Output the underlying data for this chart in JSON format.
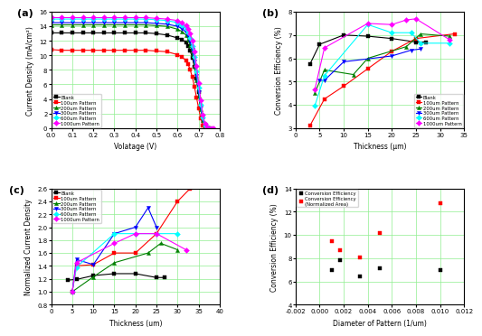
{
  "panel_a": {
    "title": "(a)",
    "xlabel": "Volatage (V)",
    "ylabel": "Current Density (mA/cm²)",
    "xlim": [
      0,
      0.8
    ],
    "ylim": [
      0,
      16
    ],
    "xticks": [
      0.0,
      0.1,
      0.2,
      0.3,
      0.4,
      0.5,
      0.6,
      0.7,
      0.8
    ],
    "yticks": [
      0,
      2,
      4,
      6,
      8,
      10,
      12,
      14,
      16
    ],
    "series": {
      "Blank": {
        "color": "black",
        "marker": "s",
        "x": [
          0.0,
          0.05,
          0.1,
          0.15,
          0.2,
          0.25,
          0.3,
          0.35,
          0.4,
          0.45,
          0.5,
          0.55,
          0.6,
          0.62,
          0.64,
          0.65,
          0.66,
          0.67,
          0.68,
          0.69,
          0.7,
          0.71,
          0.72,
          0.73,
          0.74,
          0.75
        ],
        "y": [
          13.1,
          13.1,
          13.1,
          13.1,
          13.1,
          13.1,
          13.1,
          13.1,
          13.1,
          13.1,
          13.0,
          12.8,
          12.4,
          12.2,
          11.8,
          11.3,
          10.6,
          9.7,
          8.4,
          6.8,
          5.0,
          3.1,
          1.5,
          0.5,
          0.1,
          0.0
        ]
      },
      "100um Pattern": {
        "color": "red",
        "marker": "s",
        "x": [
          0.0,
          0.05,
          0.1,
          0.15,
          0.2,
          0.25,
          0.3,
          0.35,
          0.4,
          0.45,
          0.5,
          0.55,
          0.6,
          0.62,
          0.64,
          0.65,
          0.66,
          0.67,
          0.68,
          0.69,
          0.7,
          0.71,
          0.72,
          0.73,
          0.74,
          0.75
        ],
        "y": [
          10.8,
          10.7,
          10.7,
          10.7,
          10.7,
          10.7,
          10.7,
          10.7,
          10.7,
          10.7,
          10.6,
          10.5,
          10.1,
          9.8,
          9.3,
          8.8,
          8.0,
          7.0,
          5.7,
          4.2,
          2.7,
          1.3,
          0.4,
          0.05,
          0.0,
          0.0
        ]
      },
      "200um Pattern": {
        "color": "green",
        "marker": "^",
        "x": [
          0.0,
          0.05,
          0.1,
          0.15,
          0.2,
          0.25,
          0.3,
          0.35,
          0.4,
          0.45,
          0.5,
          0.55,
          0.6,
          0.62,
          0.64,
          0.65,
          0.66,
          0.67,
          0.68,
          0.69,
          0.7,
          0.71,
          0.72,
          0.73,
          0.74,
          0.75
        ],
        "y": [
          14.2,
          14.2,
          14.2,
          14.2,
          14.2,
          14.2,
          14.2,
          14.2,
          14.2,
          14.2,
          14.1,
          14.0,
          13.6,
          13.3,
          12.8,
          12.2,
          11.4,
          10.2,
          8.6,
          6.6,
          4.5,
          2.6,
          1.1,
          0.3,
          0.02,
          0.0
        ]
      },
      "300um Pattern": {
        "color": "blue",
        "marker": "v",
        "x": [
          0.0,
          0.05,
          0.1,
          0.15,
          0.2,
          0.25,
          0.3,
          0.35,
          0.4,
          0.45,
          0.5,
          0.55,
          0.6,
          0.62,
          0.64,
          0.65,
          0.66,
          0.67,
          0.68,
          0.69,
          0.7,
          0.71,
          0.72,
          0.73,
          0.74,
          0.75
        ],
        "y": [
          14.5,
          14.5,
          14.5,
          14.5,
          14.5,
          14.5,
          14.5,
          14.5,
          14.5,
          14.5,
          14.4,
          14.3,
          14.0,
          13.7,
          13.2,
          12.7,
          11.9,
          10.8,
          9.2,
          7.2,
          5.0,
          2.8,
          1.2,
          0.3,
          0.03,
          0.0
        ]
      },
      "600um Pattern": {
        "color": "cyan",
        "marker": "D",
        "x": [
          0.0,
          0.05,
          0.1,
          0.15,
          0.2,
          0.25,
          0.3,
          0.35,
          0.4,
          0.45,
          0.5,
          0.55,
          0.6,
          0.62,
          0.64,
          0.65,
          0.66,
          0.67,
          0.68,
          0.69,
          0.7,
          0.71,
          0.72,
          0.73,
          0.74,
          0.75
        ],
        "y": [
          15.0,
          15.0,
          15.0,
          15.0,
          15.0,
          15.0,
          15.0,
          15.0,
          15.0,
          15.0,
          14.9,
          14.8,
          14.5,
          14.2,
          13.7,
          13.2,
          12.4,
          11.3,
          9.8,
          7.8,
          5.5,
          3.2,
          1.4,
          0.4,
          0.04,
          0.0
        ]
      },
      "1000um Pattern": {
        "color": "magenta",
        "marker": "D",
        "x": [
          0.0,
          0.05,
          0.1,
          0.15,
          0.2,
          0.25,
          0.3,
          0.35,
          0.4,
          0.45,
          0.5,
          0.55,
          0.6,
          0.62,
          0.64,
          0.65,
          0.66,
          0.67,
          0.68,
          0.69,
          0.7,
          0.71,
          0.72,
          0.73,
          0.74,
          0.75,
          0.76,
          0.77
        ],
        "y": [
          15.2,
          15.2,
          15.2,
          15.2,
          15.2,
          15.2,
          15.2,
          15.2,
          15.2,
          15.2,
          15.1,
          15.0,
          14.8,
          14.5,
          14.1,
          13.7,
          13.0,
          12.0,
          10.5,
          8.5,
          6.2,
          3.8,
          1.8,
          0.6,
          0.1,
          0.02,
          0.0,
          0.0
        ]
      }
    },
    "legend_loc": "lower left"
  },
  "panel_b": {
    "title": "(b)",
    "xlabel": "Thickness (μm)",
    "ylabel": "Conversion Efficiency (%)",
    "xlim": [
      0,
      35
    ],
    "ylim": [
      3,
      8
    ],
    "xticks": [
      0,
      5,
      10,
      15,
      20,
      25,
      30,
      35
    ],
    "yticks": [
      3,
      4,
      5,
      6,
      7,
      8
    ],
    "series": {
      "Blank": {
        "color": "black",
        "marker": "s",
        "x": [
          3,
          5,
          10,
          15,
          20,
          25,
          27
        ],
        "y": [
          5.75,
          6.6,
          7.0,
          6.95,
          6.85,
          6.7,
          6.7
        ]
      },
      "100um Pattern": {
        "color": "red",
        "marker": "s",
        "x": [
          3,
          6,
          10,
          15,
          20,
          25,
          33
        ],
        "y": [
          3.1,
          4.25,
          4.8,
          5.55,
          6.3,
          6.85,
          7.05
        ]
      },
      "200um Pattern": {
        "color": "green",
        "marker": "^",
        "x": [
          4,
          6,
          12,
          15,
          23,
          26,
          32
        ],
        "y": [
          4.5,
          5.5,
          5.3,
          6.0,
          6.5,
          7.05,
          6.95
        ]
      },
      "300um Pattern": {
        "color": "blue",
        "marker": "v",
        "x": [
          5,
          6,
          10,
          20,
          24,
          26
        ],
        "y": [
          5.05,
          5.05,
          5.85,
          6.1,
          6.35,
          6.4
        ]
      },
      "600um Pattern": {
        "color": "cyan",
        "marker": "D",
        "x": [
          4,
          6,
          15,
          20,
          24,
          26,
          32
        ],
        "y": [
          3.95,
          5.25,
          7.45,
          7.1,
          7.1,
          6.65,
          6.65
        ]
      },
      "1000um Pattern": {
        "color": "magenta",
        "marker": "D",
        "x": [
          4,
          6,
          15,
          20,
          23,
          25,
          32
        ],
        "y": [
          4.65,
          6.45,
          7.5,
          7.45,
          7.65,
          7.7,
          6.8
        ]
      }
    },
    "legend_loc": "lower right"
  },
  "panel_c": {
    "title": "(c)",
    "xlabel": "Thickness (um)",
    "ylabel": "Normalized Current Density",
    "xlim": [
      0,
      40
    ],
    "ylim": [
      0.8,
      2.6
    ],
    "xticks": [
      0,
      5,
      10,
      15,
      20,
      25,
      30,
      35,
      40
    ],
    "yticks": [
      0.8,
      1.0,
      1.2,
      1.4,
      1.6,
      1.8,
      2.0,
      2.2,
      2.4,
      2.6
    ],
    "series": {
      "Blank": {
        "color": "black",
        "marker": "s",
        "x": [
          4,
          6,
          10,
          15,
          20,
          25,
          27
        ],
        "y": [
          1.18,
          1.19,
          1.25,
          1.28,
          1.28,
          1.22,
          1.22
        ]
      },
      "100um Pattern": {
        "color": "red",
        "marker": "s",
        "x": [
          5,
          6,
          10,
          15,
          20,
          25,
          30,
          33
        ],
        "y": [
          1.0,
          1.4,
          1.42,
          1.6,
          1.6,
          1.9,
          2.4,
          2.6
        ]
      },
      "200um Pattern": {
        "color": "green",
        "marker": "^",
        "x": [
          5,
          10,
          15,
          23,
          26,
          30
        ],
        "y": [
          1.0,
          1.23,
          1.45,
          1.6,
          1.75,
          1.65
        ]
      },
      "300um Pattern": {
        "color": "blue",
        "marker": "v",
        "x": [
          5,
          6,
          10,
          15,
          20,
          23,
          25
        ],
        "y": [
          1.0,
          1.5,
          1.42,
          1.9,
          2.0,
          2.3,
          2.0
        ]
      },
      "600um Pattern": {
        "color": "cyan",
        "marker": "D",
        "x": [
          5,
          6,
          15,
          20,
          25,
          30
        ],
        "y": [
          1.0,
          1.38,
          1.9,
          1.9,
          1.9,
          1.9
        ]
      },
      "1000um Pattern": {
        "color": "magenta",
        "marker": "D",
        "x": [
          5,
          6,
          15,
          20,
          25,
          32
        ],
        "y": [
          1.0,
          1.45,
          1.75,
          1.9,
          1.9,
          1.65
        ]
      }
    },
    "legend_loc": "upper left"
  },
  "panel_d": {
    "title": "(d)",
    "xlabel": "Diameter of Pattern (1/um)",
    "ylabel": "Conversion Efficiency (%)",
    "xlim": [
      -0.002,
      0.012
    ],
    "ylim": [
      4,
      14
    ],
    "xticks": [
      -0.002,
      0.0,
      0.002,
      0.004,
      0.006,
      0.008,
      0.01,
      0.012
    ],
    "yticks": [
      4,
      6,
      8,
      10,
      12,
      14
    ],
    "scatter_series": {
      "Conversion Efficiency": {
        "color": "black",
        "marker": "s",
        "x": [
          0.001,
          0.00167,
          0.00333,
          0.005,
          0.01
        ],
        "y": [
          7.0,
          7.8,
          6.4,
          7.1,
          7.0
        ]
      },
      "Conversion Efficiency\n(Normalized Area)": {
        "color": "red",
        "marker": "s",
        "x": [
          0.001,
          0.00167,
          0.00333,
          0.005,
          0.01
        ],
        "y": [
          9.5,
          8.7,
          8.1,
          10.2,
          12.7
        ]
      }
    },
    "legend_loc": "upper left"
  },
  "bg_color": "#ffffff",
  "grid_color": "#90EE90",
  "marker_size": 3,
  "line_width": 0.8
}
